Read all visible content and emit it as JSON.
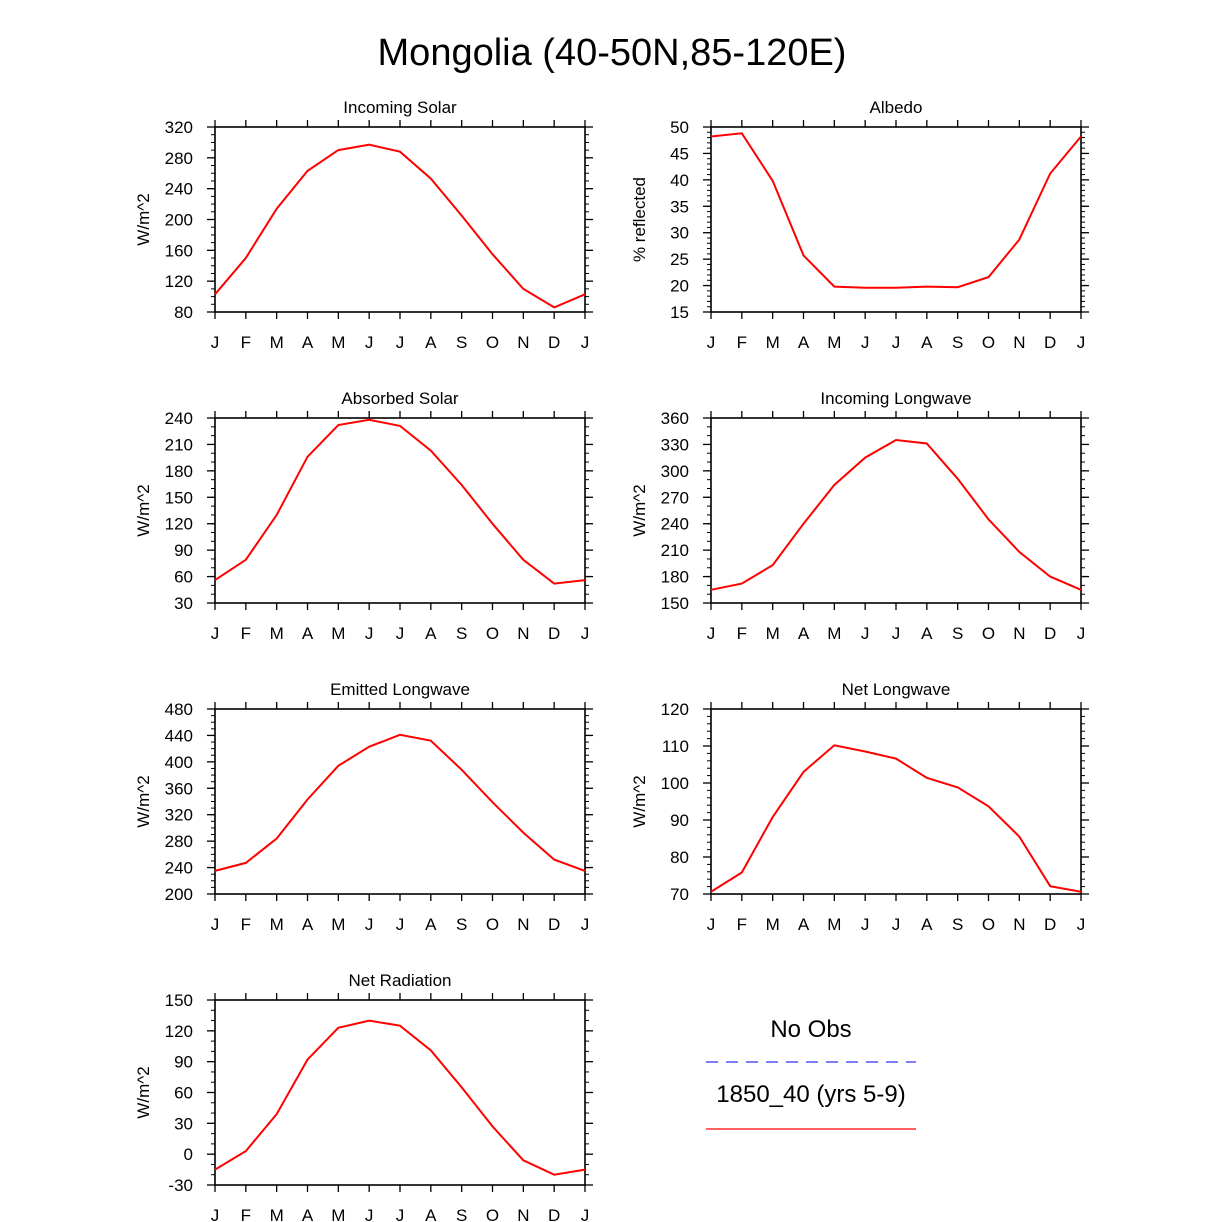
{
  "title": "Mongolia (40-50N,85-120E)",
  "colors": {
    "series": "#ff0000",
    "obs": "#3030ff",
    "axis": "#000000"
  },
  "legend": {
    "obs_label": "No Obs",
    "model_label": "1850_40 (yrs 5-9)"
  },
  "chart_data": [
    {
      "type": "line",
      "title": "Incoming Solar",
      "ylabel": "W/m^2",
      "xlabel": "",
      "categories": [
        "J",
        "F",
        "M",
        "A",
        "M",
        "J",
        "J",
        "A",
        "S",
        "O",
        "N",
        "D",
        "J"
      ],
      "ylim": [
        80,
        320
      ],
      "yticks": [
        80,
        120,
        160,
        200,
        240,
        280,
        320
      ],
      "yminor": 10,
      "series": [
        {
          "name": "1850_40 (yrs 5-9)",
          "values": [
            103,
            150,
            214,
            263,
            290,
            297,
            288,
            253,
            205,
            155,
            110,
            86,
            103
          ]
        }
      ]
    },
    {
      "type": "line",
      "title": "Albedo",
      "ylabel": "% reflected",
      "xlabel": "",
      "categories": [
        "J",
        "F",
        "M",
        "A",
        "M",
        "J",
        "J",
        "A",
        "S",
        "O",
        "N",
        "D",
        "J"
      ],
      "ylim": [
        15,
        50
      ],
      "yticks": [
        15,
        20,
        25,
        30,
        35,
        40,
        45,
        50
      ],
      "yminor": 1,
      "series": [
        {
          "name": "1850_40 (yrs 5-9)",
          "values": [
            48.2,
            48.8,
            39.8,
            25.7,
            19.8,
            19.6,
            19.6,
            19.8,
            19.7,
            21.6,
            28.7,
            41.2,
            48.2
          ]
        }
      ]
    },
    {
      "type": "line",
      "title": "Absorbed Solar",
      "ylabel": "W/m^2",
      "xlabel": "",
      "categories": [
        "J",
        "F",
        "M",
        "A",
        "M",
        "J",
        "J",
        "A",
        "S",
        "O",
        "N",
        "D",
        "J"
      ],
      "ylim": [
        30,
        240
      ],
      "yticks": [
        30,
        60,
        90,
        120,
        150,
        180,
        210,
        240
      ],
      "yminor": 10,
      "series": [
        {
          "name": "1850_40 (yrs 5-9)",
          "values": [
            56,
            79,
            130,
            196,
            232,
            238,
            231,
            203,
            164,
            120,
            79,
            52,
            56
          ]
        }
      ]
    },
    {
      "type": "line",
      "title": "Incoming Longwave",
      "ylabel": "W/m^2",
      "xlabel": "",
      "categories": [
        "J",
        "F",
        "M",
        "A",
        "M",
        "J",
        "J",
        "A",
        "S",
        "O",
        "N",
        "D",
        "J"
      ],
      "ylim": [
        150,
        360
      ],
      "yticks": [
        150,
        180,
        210,
        240,
        270,
        300,
        330,
        360
      ],
      "yminor": 10,
      "series": [
        {
          "name": "1850_40 (yrs 5-9)",
          "values": [
            165,
            172,
            193,
            240,
            284,
            315,
            335,
            331,
            291,
            245,
            208,
            180,
            165
          ]
        }
      ]
    },
    {
      "type": "line",
      "title": "Emitted Longwave",
      "ylabel": "W/m^2",
      "xlabel": "",
      "categories": [
        "J",
        "F",
        "M",
        "A",
        "M",
        "J",
        "J",
        "A",
        "S",
        "O",
        "N",
        "D",
        "J"
      ],
      "ylim": [
        200,
        480
      ],
      "yticks": [
        200,
        240,
        280,
        320,
        360,
        400,
        440,
        480
      ],
      "yminor": 10,
      "series": [
        {
          "name": "1850_40 (yrs 5-9)",
          "values": [
            235,
            247,
            284,
            343,
            394,
            423,
            441,
            432,
            388,
            339,
            293,
            252,
            235
          ]
        }
      ]
    },
    {
      "type": "line",
      "title": "Net Longwave",
      "ylabel": "W/m^2",
      "xlabel": "",
      "categories": [
        "J",
        "F",
        "M",
        "A",
        "M",
        "J",
        "J",
        "A",
        "S",
        "O",
        "N",
        "D",
        "J"
      ],
      "ylim": [
        70,
        120
      ],
      "yticks": [
        70,
        80,
        90,
        100,
        110,
        120
      ],
      "yminor": 2,
      "series": [
        {
          "name": "1850_40 (yrs 5-9)",
          "values": [
            70.6,
            75.8,
            90.8,
            103.0,
            110.2,
            108.5,
            106.6,
            101.4,
            98.8,
            93.7,
            85.5,
            72.1,
            70.6
          ]
        }
      ]
    },
    {
      "type": "line",
      "title": "Net Radiation",
      "ylabel": "W/m^2",
      "xlabel": "",
      "categories": [
        "J",
        "F",
        "M",
        "A",
        "M",
        "J",
        "J",
        "A",
        "S",
        "O",
        "N",
        "D",
        "J"
      ],
      "ylim": [
        -30,
        150
      ],
      "yticks": [
        -30,
        0,
        30,
        60,
        90,
        120,
        150
      ],
      "yminor": 10,
      "series": [
        {
          "name": "1850_40 (yrs 5-9)",
          "values": [
            -15,
            3,
            39,
            92,
            123,
            130,
            125,
            101,
            65,
            27,
            -6,
            -20,
            -15
          ]
        }
      ]
    }
  ]
}
